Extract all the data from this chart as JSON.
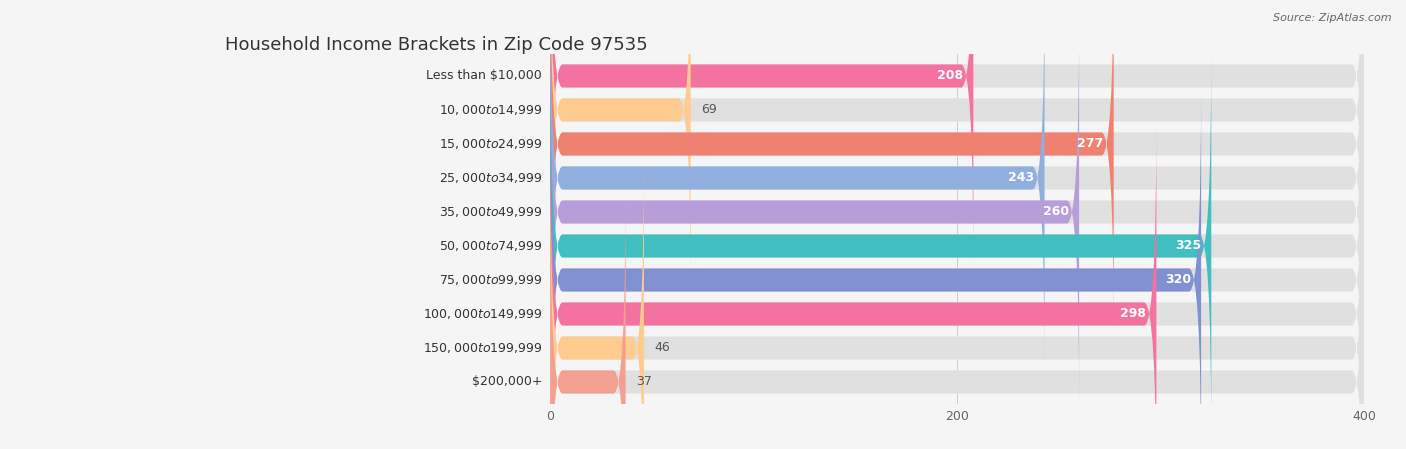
{
  "title": "Household Income Brackets in Zip Code 97535",
  "source": "Source: ZipAtlas.com",
  "categories": [
    "Less than $10,000",
    "$10,000 to $14,999",
    "$15,000 to $24,999",
    "$25,000 to $34,999",
    "$35,000 to $49,999",
    "$50,000 to $74,999",
    "$75,000 to $99,999",
    "$100,000 to $149,999",
    "$150,000 to $199,999",
    "$200,000+"
  ],
  "values": [
    208,
    69,
    277,
    243,
    260,
    325,
    320,
    298,
    46,
    37
  ],
  "bar_colors": [
    "#F472A0",
    "#FFCB8E",
    "#F08070",
    "#90AEDE",
    "#B89ED8",
    "#40BEC0",
    "#8090D0",
    "#F472A0",
    "#FFCB8E",
    "#F4A090"
  ],
  "xlim": [
    0,
    400
  ],
  "xticks": [
    0,
    200,
    400
  ],
  "background_color": "#f5f5f5",
  "bar_background_color": "#e0e0e0",
  "title_fontsize": 13,
  "label_fontsize": 9,
  "value_fontsize": 9,
  "value_threshold": 80
}
